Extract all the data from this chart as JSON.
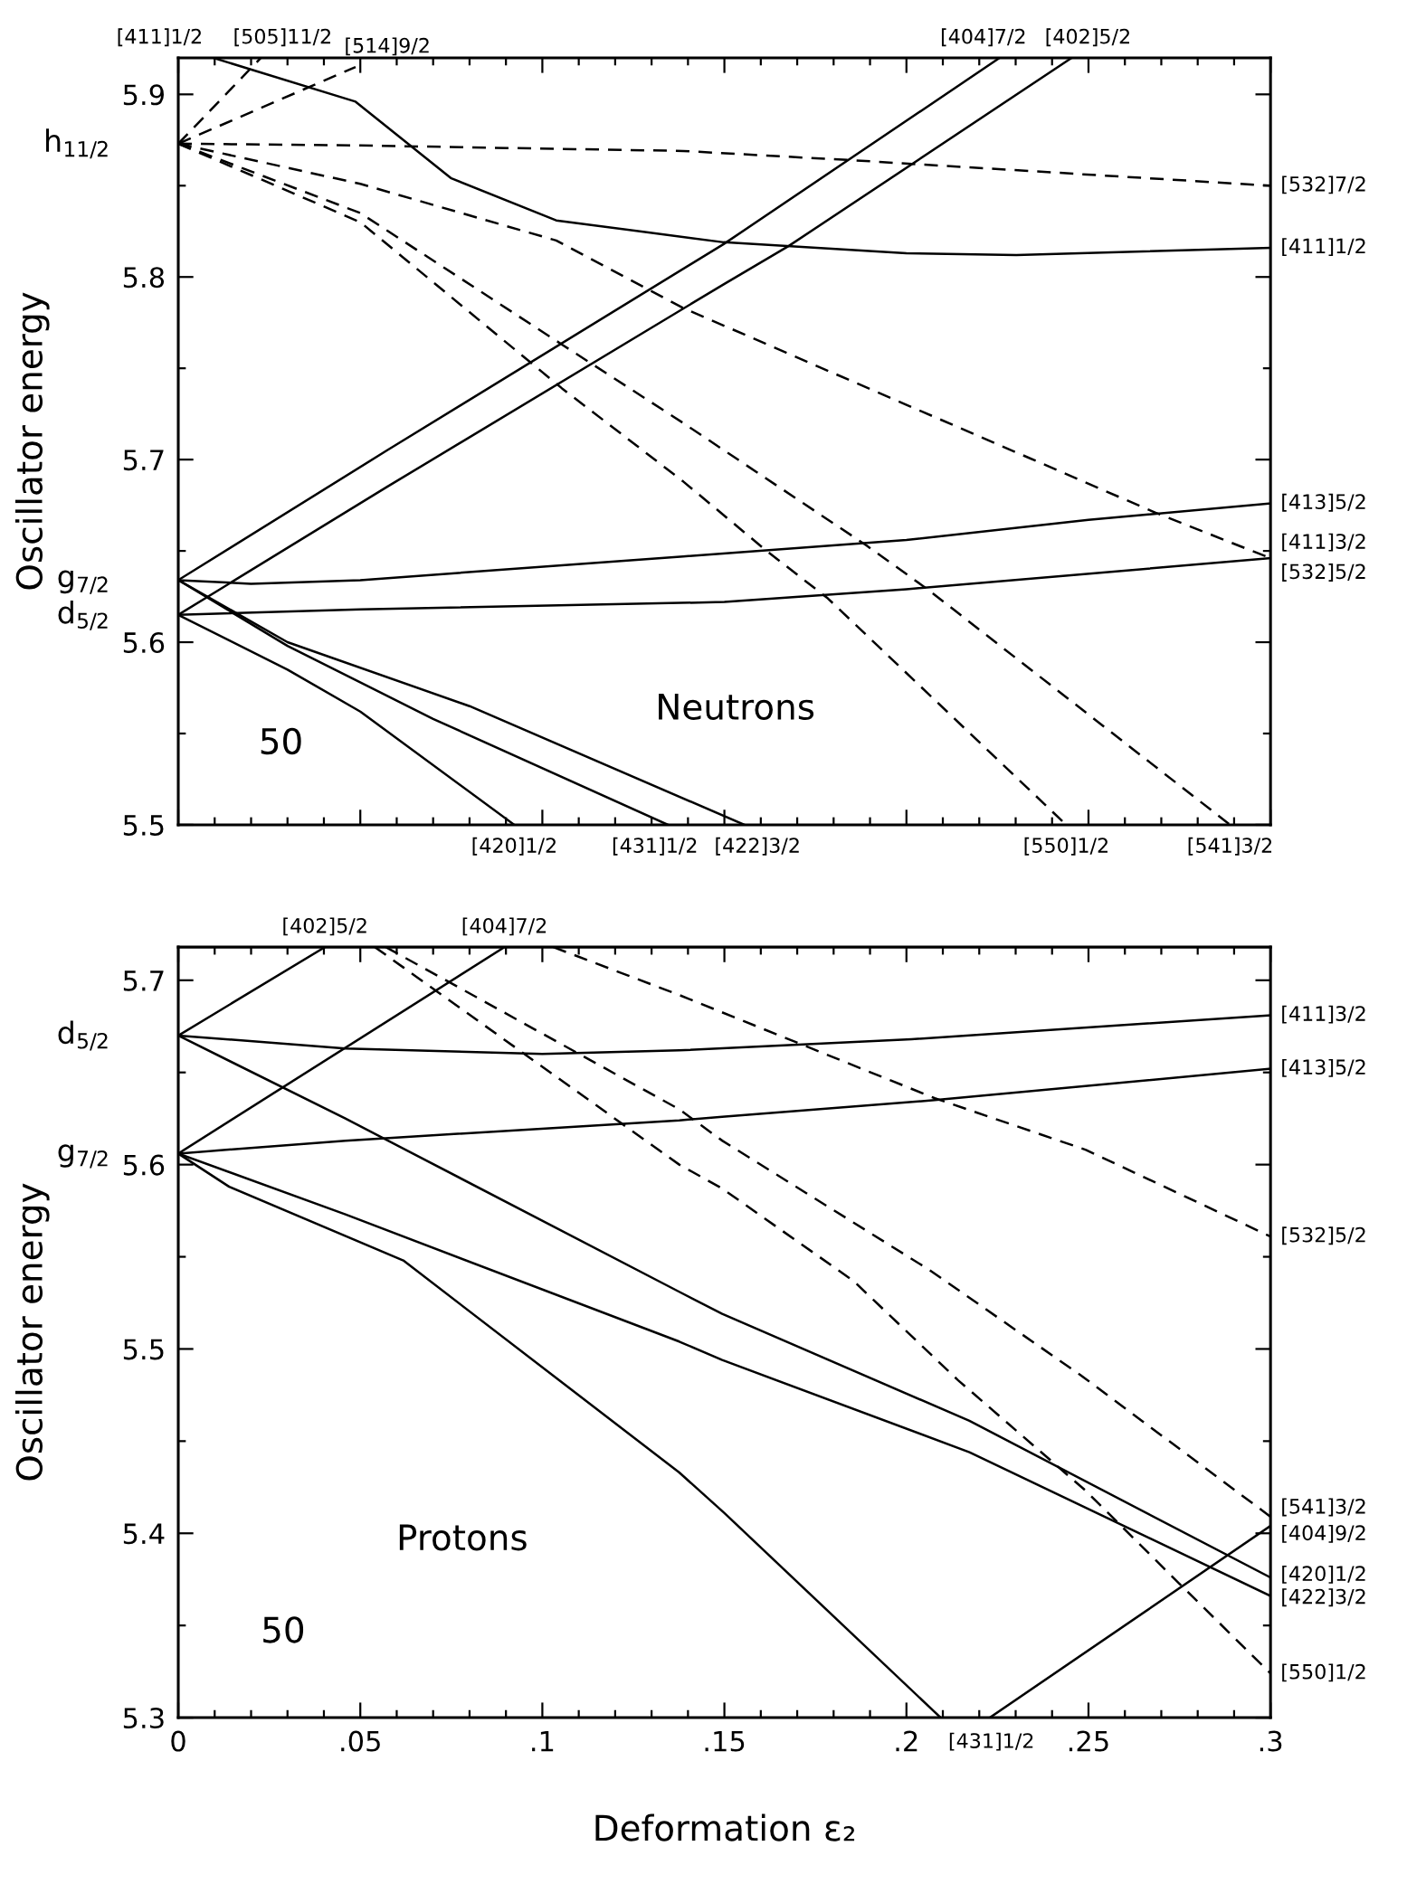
{
  "chart_data": [
    {
      "type": "line",
      "ylabel": "Oscillator energy",
      "xlim": [
        0,
        0.3
      ],
      "ylim": [
        5.5,
        5.92
      ],
      "tick_labels": "y",
      "xticks": [
        0,
        {
          "value": 0.01,
          "label": null
        },
        {
          "value": 0.02,
          "label": null
        },
        {
          "value": 0.03,
          "label": null
        },
        {
          "value": 0.04,
          "label": null
        },
        0.05,
        {
          "value": 0.06,
          "label": null
        },
        {
          "value": 0.07,
          "label": null
        },
        {
          "value": 0.08,
          "label": null
        },
        {
          "value": 0.09,
          "label": null
        },
        0.1,
        {
          "value": 0.11,
          "label": null
        },
        {
          "value": 0.12,
          "label": null
        },
        {
          "value": 0.13,
          "label": null
        },
        {
          "value": 0.14,
          "label": null
        },
        0.15,
        {
          "value": 0.16,
          "label": null
        },
        {
          "value": 0.17,
          "label": null
        },
        {
          "value": 0.18,
          "label": null
        },
        {
          "value": 0.19,
          "label": null
        },
        0.2,
        {
          "value": 0.21,
          "label": null
        },
        {
          "value": 0.22,
          "label": null
        },
        {
          "value": 0.23,
          "label": null
        },
        {
          "value": 0.24,
          "label": null
        },
        0.25,
        {
          "value": 0.26,
          "label": null
        },
        {
          "value": 0.27,
          "label": null
        },
        {
          "value": 0.28,
          "label": null
        },
        {
          "value": 0.29,
          "label": null
        },
        0.3
      ],
      "yticks": [
        5.5,
        {
          "value": 5.55,
          "label": null
        },
        5.6,
        {
          "value": 5.65,
          "label": null
        },
        5.7,
        {
          "value": 5.75,
          "label": null
        },
        5.8,
        {
          "value": 5.85,
          "label": null
        },
        5.9
      ],
      "series": [
        {
          "color": "#000000",
          "line_style": "dashed",
          "x": [
            0,
            0.0227
          ],
          "values": [
            5.873,
            5.92
          ]
        },
        {
          "color": "#000000",
          "line_style": "dashed",
          "x": [
            0,
            0.0487
          ],
          "values": [
            5.873,
            5.915
          ]
        },
        {
          "color": "#000000",
          "line_style": "dashed",
          "x": [
            0,
            0.05,
            0.1387,
            0.1845,
            0.3
          ],
          "values": [
            5.873,
            5.872,
            5.869,
            5.864,
            5.85
          ]
        },
        {
          "color": "#000000",
          "line_style": "dashed",
          "x": [
            0,
            0.05,
            0.1038,
            0.1387,
            0.2,
            0.2683,
            0.3
          ],
          "values": [
            5.873,
            5.851,
            5.82,
            5.783,
            5.73,
            5.671,
            5.646
          ]
        },
        {
          "color": "#000000",
          "line_style": "dashed",
          "x": [
            0,
            0.05,
            0.1054,
            0.1387,
            0.189,
            0.2058,
            0.2889
          ],
          "values": [
            5.873,
            5.835,
            5.763,
            5.72,
            5.653,
            5.629,
            5.5
          ]
        },
        {
          "color": "#000000",
          "line_style": "dashed",
          "x": [
            0,
            0.05,
            0.1054,
            0.1387,
            0.1616,
            0.1784,
            0.2439
          ],
          "values": [
            5.873,
            5.83,
            5.739,
            5.688,
            5.65,
            5.624,
            5.5
          ]
        },
        {
          "color": "#000000",
          "line_style": "solid",
          "x": [
            0.0096,
            0.0487,
            0.075,
            0.1038,
            0.1498,
            0.2,
            0.2302,
            0.3
          ],
          "values": [
            5.92,
            5.896,
            5.854,
            5.831,
            5.819,
            5.813,
            5.812,
            5.816
          ]
        },
        {
          "color": "#000000",
          "line_style": "solid",
          "x": [
            0,
            0.0573,
            0.1498,
            0.2256
          ],
          "values": [
            5.634,
            5.705,
            5.818,
            5.92
          ]
        },
        {
          "color": "#000000",
          "line_style": "solid",
          "x": [
            0,
            0.0573,
            0.1498,
            0.1677,
            0.2454
          ],
          "values": [
            5.615,
            5.685,
            5.796,
            5.817,
            5.92
          ]
        },
        {
          "color": "#000000",
          "line_style": "solid",
          "x": [
            0,
            0.02,
            0.05,
            0.1387,
            0.2,
            0.25,
            0.3
          ],
          "values": [
            5.634,
            5.632,
            5.634,
            5.647,
            5.656,
            5.667,
            5.676
          ]
        },
        {
          "color": "#000000",
          "line_style": "solid",
          "x": [
            0,
            0.05,
            0.15,
            0.2,
            0.3
          ],
          "values": [
            5.615,
            5.618,
            5.622,
            5.629,
            5.646
          ]
        },
        {
          "color": "#000000",
          "line_style": "solid",
          "x": [
            0,
            0.03,
            0.05,
            0.0923
          ],
          "values": [
            5.615,
            5.585,
            5.562,
            5.5
          ]
        },
        {
          "color": "#000000",
          "line_style": "solid",
          "x": [
            0,
            0.03,
            0.07,
            0.1345
          ],
          "values": [
            5.634,
            5.598,
            5.558,
            5.5
          ]
        },
        {
          "color": "#000000",
          "line_style": "solid",
          "x": [
            0,
            0.03,
            0.08,
            0.1555
          ],
          "values": [
            5.634,
            5.6,
            5.565,
            5.5
          ]
        }
      ],
      "annotations": [
        {
          "text": "[411]1/2",
          "x": 0.0096,
          "y": 5.92
        },
        {
          "text": "[505]11/2",
          "x": 0.0227,
          "y": 5.92
        },
        {
          "text": "[514]9/2",
          "x": 0.0487,
          "y": 5.915
        },
        {
          "text": "[404]7/2",
          "x": 0.2256,
          "y": 5.92
        },
        {
          "text": "[402]5/2",
          "x": 0.2454,
          "y": 5.92
        },
        {
          "text": "[532]7/2",
          "x": 0.3,
          "y": 5.85
        },
        {
          "text": "[411]1/2",
          "x": 0.3,
          "y": 5.816
        },
        {
          "text": "[413]5/2",
          "x": 0.3,
          "y": 5.676
        },
        {
          "text": "[532]5/2",
          "x": 0.3,
          "y": 5.646
        },
        {
          "text": "[411]3/2",
          "x": 0.3,
          "y": 5.646
        },
        {
          "text": "[420]1/2",
          "x": 0.0923,
          "y": 5.5
        },
        {
          "text": "[431]1/2",
          "x": 0.1345,
          "y": 5.5
        },
        {
          "text": "[422]3/2",
          "x": 0.1555,
          "y": 5.5
        },
        {
          "text": "[550]1/2",
          "x": 0.2439,
          "y": 5.5
        },
        {
          "text": "[541]3/2",
          "x": 0.2889,
          "y": 5.5
        },
        {
          "text": "h$_{11/2}$",
          "x": 0,
          "y": 5.873
        },
        {
          "text": "g$_{7/2}$",
          "x": 0,
          "y": 5.634
        },
        {
          "text": "d$_{5/2}$",
          "x": 0,
          "y": 5.615
        },
        "Neutrons",
        "50"
      ]
    },
    {
      "type": "line",
      "ylabel": "Oscillator energy",
      "xlabel": "Deformation ε₂",
      "xlim": [
        0,
        0.3
      ],
      "ylim": [
        5.3,
        5.718
      ],
      "xticks": [
        0,
        {
          "value": 0.01,
          "label": null
        },
        {
          "value": 0.02,
          "label": null
        },
        {
          "value": 0.03,
          "label": null
        },
        {
          "value": 0.04,
          "label": null
        },
        {
          "value": 0.05,
          "label": ".05"
        },
        {
          "value": 0.06,
          "label": null
        },
        {
          "value": 0.07,
          "label": null
        },
        {
          "value": 0.08,
          "label": null
        },
        {
          "value": 0.09,
          "label": null
        },
        {
          "value": 0.1,
          "label": ".1"
        },
        {
          "value": 0.11,
          "label": null
        },
        {
          "value": 0.12,
          "label": null
        },
        {
          "value": 0.13,
          "label": null
        },
        {
          "value": 0.14,
          "label": null
        },
        {
          "value": 0.15,
          "label": ".15"
        },
        {
          "value": 0.16,
          "label": null
        },
        {
          "value": 0.17,
          "label": null
        },
        {
          "value": 0.18,
          "label": null
        },
        {
          "value": 0.19,
          "label": null
        },
        {
          "value": 0.2,
          "label": ".2"
        },
        {
          "value": 0.21,
          "label": null
        },
        {
          "value": 0.22,
          "label": null
        },
        {
          "value": 0.23,
          "label": null
        },
        {
          "value": 0.24,
          "label": null
        },
        {
          "value": 0.25,
          "label": ".25"
        },
        {
          "value": 0.26,
          "label": null
        },
        {
          "value": 0.27,
          "label": null
        },
        {
          "value": 0.28,
          "label": null
        },
        {
          "value": 0.29,
          "label": null
        },
        {
          "value": 0.3,
          "label": ".3"
        }
      ],
      "yticks": [
        5.3,
        {
          "value": 5.35,
          "label": null
        },
        5.4,
        {
          "value": 5.45,
          "label": null
        },
        5.5,
        {
          "value": 5.55,
          "label": null
        },
        5.6,
        {
          "value": 5.65,
          "label": null
        },
        5.7
      ],
      "series": [
        {
          "color": "#000000",
          "line_style": "solid",
          "x": [
            0,
            0.0403
          ],
          "values": [
            5.67,
            5.718
          ]
        },
        {
          "color": "#000000",
          "line_style": "solid",
          "x": [
            0,
            0.0896
          ],
          "values": [
            5.606,
            5.718
          ]
        },
        {
          "color": "#000000",
          "line_style": "dashed",
          "x": [
            0.103,
            0.1376,
            0.2078,
            0.2493,
            0.3
          ],
          "values": [
            5.718,
            5.692,
            5.636,
            5.608,
            5.561
          ]
        },
        {
          "color": "#000000",
          "line_style": "dashed",
          "x": [
            0.057,
            0.1376,
            0.1494,
            0.2062,
            0.2477,
            0.3
          ],
          "values": [
            5.718,
            5.63,
            5.613,
            5.543,
            5.486,
            5.409
          ]
        },
        {
          "color": "#000000",
          "line_style": "dashed",
          "x": [
            0.054,
            0.1376,
            0.1494,
            0.1854,
            0.2142,
            0.2493,
            0.2748,
            0.3
          ],
          "values": [
            5.718,
            5.6,
            5.587,
            5.537,
            5.483,
            5.423,
            5.373,
            5.324
          ]
        },
        {
          "color": "#000000",
          "line_style": "solid",
          "x": [
            0,
            0.0459,
            0.1,
            0.1376,
            0.2014,
            0.3
          ],
          "values": [
            5.67,
            5.663,
            5.66,
            5.662,
            5.668,
            5.681
          ]
        },
        {
          "color": "#000000",
          "line_style": "solid",
          "x": [
            0,
            0.0459,
            0.1376,
            0.1494,
            0.2078,
            0.3
          ],
          "values": [
            5.606,
            5.613,
            5.624,
            5.626,
            5.635,
            5.652
          ]
        },
        {
          "color": "#000000",
          "line_style": "solid",
          "x": [
            0,
            0.0459,
            0.1376,
            0.1494,
            0.2173,
            0.3
          ],
          "values": [
            5.67,
            5.625,
            5.531,
            5.519,
            5.461,
            5.376
          ]
        },
        {
          "color": "#000000",
          "line_style": "solid",
          "x": [
            0,
            0.0459,
            0.1376,
            0.1494,
            0.2173,
            0.3
          ],
          "values": [
            5.606,
            5.573,
            5.504,
            5.494,
            5.444,
            5.366
          ]
        },
        {
          "color": "#000000",
          "line_style": "solid",
          "x": [
            0,
            0.014,
            0.0618,
            0.1376,
            0.15,
            0.2094
          ],
          "values": [
            5.606,
            5.588,
            5.548,
            5.433,
            5.411,
            5.3
          ]
        },
        {
          "color": "#000000",
          "line_style": "solid",
          "x": [
            0.2229,
            0.3
          ],
          "values": [
            5.3,
            5.404
          ]
        }
      ],
      "annotations": [
        {
          "text": "[402]5/2",
          "x": 0.0403,
          "y": 5.718
        },
        {
          "text": "[404]7/2",
          "x": 0.0896,
          "y": 5.718
        },
        {
          "text": "[411]3/2",
          "x": 0.3,
          "y": 5.681
        },
        {
          "text": "[413]5/2",
          "x": 0.3,
          "y": 5.652
        },
        {
          "text": "[532]5/2",
          "x": 0.3,
          "y": 5.561
        },
        {
          "text": "[541]3/2",
          "x": 0.3,
          "y": 5.409
        },
        {
          "text": "[404]9/2",
          "x": 0.3,
          "y": 5.404
        },
        {
          "text": "[420]1/2",
          "x": 0.3,
          "y": 5.376
        },
        {
          "text": "[422]3/2",
          "x": 0.3,
          "y": 5.366
        },
        {
          "text": "[550]1/2",
          "x": 0.3,
          "y": 5.324
        },
        {
          "text": "[431]1/2",
          "x": 0.2094,
          "y": 5.3
        },
        {
          "text": "d$_{5/2}$",
          "x": 0,
          "y": 5.67
        },
        {
          "text": "g$_{7/2}$",
          "x": 0,
          "y": 5.606
        },
        "Protons",
        "50"
      ]
    }
  ]
}
